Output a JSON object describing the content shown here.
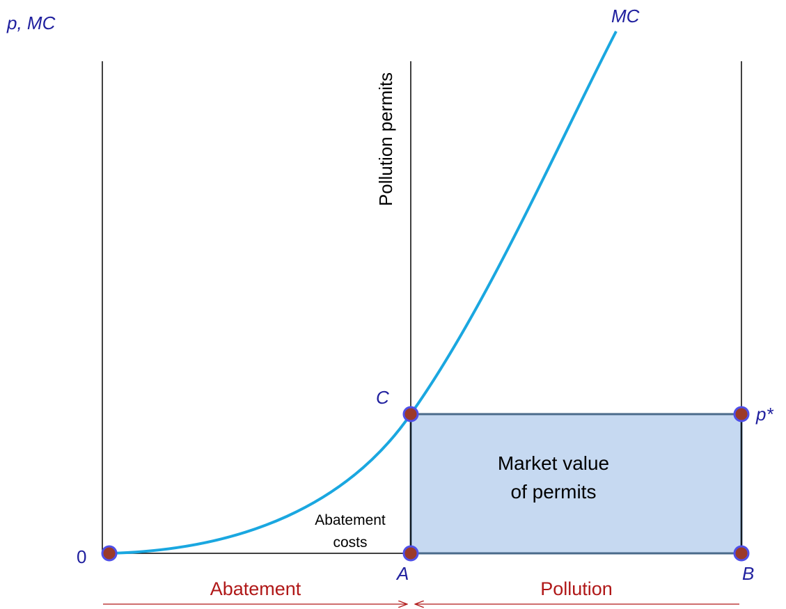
{
  "labels": {
    "y_axis": "p, MC",
    "curve": "MC",
    "permits": "Pollution permits",
    "point_c": "C",
    "price": "p*",
    "market_value": [
      "Market value",
      "of permits"
    ],
    "abatement_costs": [
      "Abatement",
      "costs"
    ],
    "origin": "0",
    "point_a": "A",
    "point_b": "B",
    "abatement": "Abatement",
    "pollution": "Pollution"
  }
}
